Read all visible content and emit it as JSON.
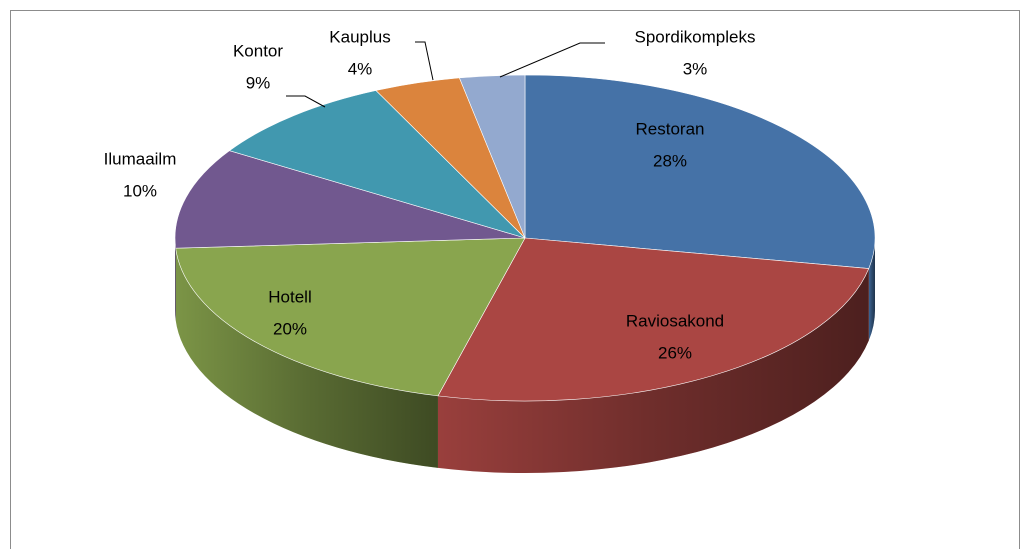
{
  "chart_data": {
    "type": "pie3d",
    "categories": [
      "Restoran",
      "Raviosakond",
      "Hotell",
      "Ilumaailm",
      "Kontor",
      "Kauplus",
      "Spordikompleks"
    ],
    "values": [
      28,
      26,
      20,
      10,
      9,
      4,
      3
    ],
    "value_labels": [
      "28%",
      "26%",
      "20%",
      "10%",
      "9%",
      "4%",
      "3%"
    ],
    "colors": [
      "#4572a7",
      "#aa4643",
      "#89a54e",
      "#71588f",
      "#4198af",
      "#db843d",
      "#93a9cf"
    ]
  }
}
